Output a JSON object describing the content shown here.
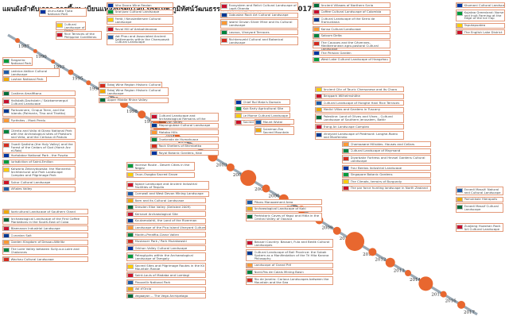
{
  "title": "แผนผังลำดับเวลา การขึ้นทะเบียนแหล่งมรดกโลก ประเภท ภูมิทัศน์วัฒนธรรม ตั้งแต่ปี ค.ศ. 1986 – 2017",
  "years": [
    "1987",
    "1990",
    "1993",
    "1995",
    "1996",
    "1997",
    "1998",
    "1999",
    "2000",
    "2001",
    "2002",
    "2003",
    "2004",
    "2005",
    "2006",
    "2007",
    "2008",
    "2009",
    "2010",
    "2011",
    "2012",
    "2013",
    "2014",
    "2015",
    "2016",
    "2017"
  ],
  "groups": {
    "g1986_top": [
      "Tokaj Wine Region Historic Cultural Landscape"
    ],
    "g1987": [
      "Uluru-Kata Tjuta National Park"
    ],
    "g1990": [
      "Tongariro National Park"
    ],
    "g1993": [
      "Cultural Landscape of Sintra"
    ],
    "g1995": [
      "Rice Terraces of the Philippine Cordilleras"
    ],
    "g1996": [
      "Lednice-Valtice Cultural Landscape"
    ],
    "g1997": [
      "Lushan National Park"
    ],
    "g1997b": [
      "Costiera Amalfitana",
      "Hallstatt-Dachstein / Salzkammergut Cultural Landscape",
      "Portovenere, Cinque Terre, and the Islands (Palmaria, Tino and Tinetto)",
      "Pyrénées - Mont Perdu"
    ],
    "g1998": [
      "Cilento and Vallo di Diano National Park with the Archeological sites of Paestum and Velia, and the Certosa di Padula",
      "Ouadi Qadisha (the Holy Valley) and the Forest of the Cedars of God (Horsh Arz el-Rab)"
    ],
    "g1999": [
      "Hortobágy National Park - the Puszta",
      "Jurisdiction of Saint-Emilion",
      "Kalwaria Zebrzydowska: the Mannerist Architectural and Park Landscape Complex and Pilgrimage Park",
      "Sukur Cultural Landscape",
      "Viñales Valley"
    ],
    "g2000": [
      "Agricultural Landscape of Southern Öland",
      "Archaeological Landscape of the First Coffee Plantations in the South-East of Cuba",
      "Blaenavon Industrial Landscape",
      "Curonian Spit",
      "Garden Kingdom of Dessau-Wörlitz",
      "The Loire Valley between Sully-sur-Loire and Chalonnes",
      "Wachau Cultural Landscape"
    ],
    "g2001": [
      "Alto Douro Wine Region",
      "Aranjuez Cultural Landscape",
      "Fertö / Neusiedlersee Cultural Landscape",
      "Royal Hill of Ambohimanga",
      "Vat Phou and Associated Ancient Settlements within the Champasak Cultural Landscape"
    ],
    "g2002": [
      "Tokaj Wine Region Historic Cultural Landscape",
      "Upper Middle Rhine Valley"
    ],
    "g2003": [
      "Cultural Landscape and Archaeological Remains of the Bamiyan Valley",
      "Mapungubwe Cultural Landscape",
      "Matobo Hills",
      "Quebrada de Humahuaca",
      "Rock Shelters of Bhimbetka",
      "Royal Botanic Gardens, Kew"
    ],
    "g2004": [
      "Incense Route - Desert Cities in the Negev",
      "Osun-Osogbo Sacred Grove"
    ],
    "g2004b": [
      "Agave Landscape and Ancient Industrial Facilities of Tequila",
      "Cornwall and West Devon Mining Landscape"
    ],
    "g2005": [
      "Bam and its Cultural Landscape",
      "Dresden Elbe Valley (Delisted 2009)",
      "Kernavė Archaeological Site",
      "Kuutamolahti, the Land of the Riverman",
      "Landscape of the Pico Island Vineyard Culture",
      "Madriu-Perafita-Claror Valley",
      "Muskauer Park / Park Mużakowski",
      "Orkhon Valley Cultural Landscape",
      "Petroglyphs within the Archaeological Landscape of Tamgaly",
      "Sacred Sites and Pilgrimage Routes in the Kii Mountain Range",
      "Saint-Louis of Madaba and Lomtagi",
      "Pingvellir National Park",
      "Val d'Orcia",
      "Vegaøyan -- The Vega Archipelago"
    ],
    "g2006": [
      "Ecosystem and Relict Cultural Landscape of Lopé-Okanda",
      "Gobustan Rock Art Cultural Landscape",
      "Iwami Ginzan Silver Mine and its Cultural Landscape",
      "Lavaux, Vineyard Terraces",
      "Richtersveld Cultural and Botanical Landscape"
    ],
    "g2007": [
      "Chief Roi Mata's Domain",
      "Kuk Early Agricultural Site",
      "Le Morne Cultural Landscape",
      "Sacred Mijikenda Kaya Forests"
    ],
    "g2008": [
      "Mount Wutai",
      "Sulaiman-Too Sacred Mountain"
    ],
    "g2009": [
      "Ancient Villages of Northern Syria",
      "Coffee Cultural Landscape of Colombia",
      "Cultural Landscape of the Serra de Tramuntana",
      "Konso Cultural Landscape",
      "Saloum Delta",
      "The Causses and the Cévennes, Mediterranean agro-pastoral Cultural Landscape",
      "The Persian Garden",
      "West Lake Cultural Landscape of Hangzhou"
    ],
    "g2010": [
      "Ancient City of Tauric Chersonese and its Chora",
      "Bergpark Wilhelmshöhe",
      "Cultural Landscape of Honghe Hani Rice Terraces",
      "Medici Villas and Gardens in Tuscany",
      "Palestine: Land of Olives and Vines - Cultural Landscape of Southern Jerusalem, Battir",
      "Trang An Landscape Complex",
      "Vineyard Landscape of Piedmont: Langhe-Roero and Monferrato"
    ],
    "g2011": [
      "Champagne Hillsides, Houses and Cellars",
      "Cultural Landscape of Maymand",
      "Diyarbakır Fortress and Hevsel Gardens Cultural Landscape",
      "Fray Bentos Industrial Landscape",
      "Singapore Botanic Gardens",
      "The Climats, terroirs of Burgundy",
      "The par force hunting landscape in North Zealand"
    ],
    "g2012": [
      "Pitons Management Area",
      "Archaeological Landscape of Kaki",
      "Prehistoric Caves of Yagul and Mitla in the Central Valley of Oaxaca"
    ],
    "g2013": [
      "Bassari Country: Bassari, Fula and Bedik Cultural Landscapes",
      "Cultural Landscape of Bali Province: the Subak System as a Manifestation of the Tri Hita Karana Philosophy",
      "Landscape of Grand Pré",
      "Nord-Pas de Calais Mining Basin",
      "Rio de Janeiro: Carioca Landscapes between the Mountain and the Sea"
    ],
    "g2015": [
      "Khomani Cultural Landscape",
      "Kujataa Greenland: Norse and Inuit Farming at the Edge of the Ice Cap",
      "Taputapuatea",
      "The English Lake District"
    ],
    "g2017": [
      "Ennedi Massif: Natural and Cultural Landscape",
      "Pamukkale Hierapolis",
      "Ennedi Massif Cultural Landscape"
    ],
    "g2017b": [
      "Zuojiang Huashan Rock Art Cultural Landscape"
    ]
  },
  "colors": {
    "line": "#9aa9b5",
    "dot": "#e8672f",
    "box_border": "#e39a7a",
    "text": "#444444",
    "year": "#333333"
  },
  "flags": [
    "#d52b1e",
    "#0033a0",
    "#009b3a",
    "#ffcc00",
    "#ce1126",
    "#1d5aa8",
    "#f2a900",
    "#006c35",
    "#c8102e",
    "#003893",
    "#ff9933",
    "#00843d"
  ]
}
